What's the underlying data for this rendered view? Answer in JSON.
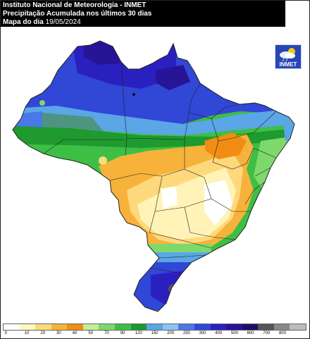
{
  "header": {
    "line1": "Instituto Nacional de Meteorologia - INMET",
    "line2": "Precipitação Acumulada nos últimos 30 dias",
    "line3_prefix": "Mapa do dia",
    "date": "19/05/2024"
  },
  "logo": {
    "text": "INMET"
  },
  "legend": {
    "labels": [
      "0",
      "10",
      "20",
      "30",
      "40",
      "50",
      "70",
      "90",
      "120",
      "150",
      "200",
      "250",
      "300",
      "400",
      "500",
      "600",
      "700",
      "800"
    ],
    "colors": [
      "#ffffff",
      "#fff6c0",
      "#fdd97c",
      "#f7b23b",
      "#f08d12",
      "#c1ef9a",
      "#7ed96a",
      "#3dbf45",
      "#1e9a2e",
      "#5aa6e6",
      "#8bc4f3",
      "#4a78e8",
      "#3147d6",
      "#2a20c0",
      "#271496",
      "#1b1166",
      "#555555",
      "#888888",
      "#bcbcbc"
    ]
  },
  "colors": {
    "ocean": "#ffffff",
    "border": "#222222",
    "heavy": "#2a20c0",
    "moderate": "#3dbf45",
    "dry": "#fff3b8",
    "orange": "#f7b23b"
  }
}
